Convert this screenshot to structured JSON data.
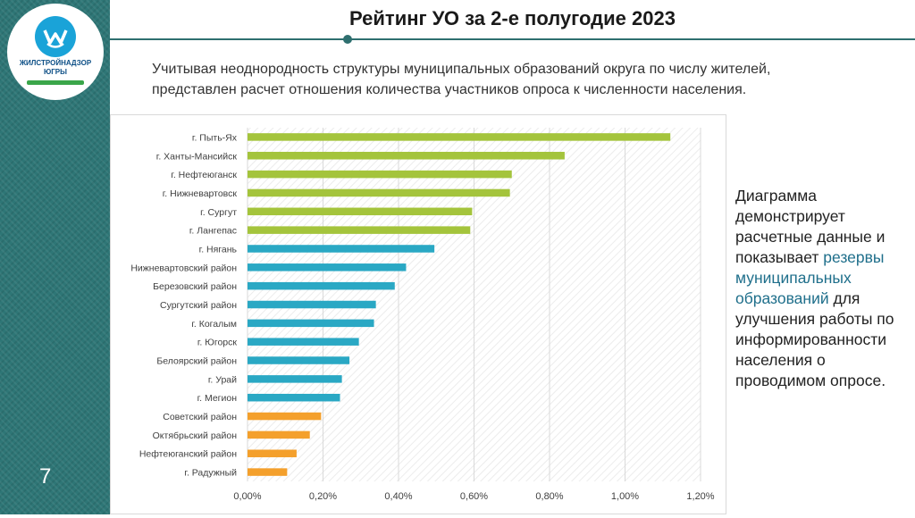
{
  "header": {
    "title": "Рейтинг УО за 2-е полугодие 2023",
    "subtitle_line1": "Учитывая неоднородность структуры муниципальных образований округа по числу жителей,",
    "subtitle_line2": "представлен расчет отношения количества участников опроса к численности населения."
  },
  "logo": {
    "line1": "ЖИЛСТРОЙНАДЗОР",
    "line2": "ЮГРЫ"
  },
  "page_number": "7",
  "side_note": {
    "part1": "Диаграмма демонстрирует расчетные данные и показывает ",
    "highlight": "резервы муниципальных образований",
    "part2": " для улучшения работы по информированности населения о проводимом опросе."
  },
  "colors": {
    "green": "#a4c43c",
    "blue": "#2aa8c4",
    "orange": "#f4a02c",
    "accent": "#2e6f6f"
  },
  "chart_data": {
    "type": "bar",
    "orientation": "horizontal",
    "categories": [
      "г. Пыть-Ях",
      "г. Ханты-Мансийск",
      "г. Нефтеюганск",
      "г. Нижневартовск",
      "г. Сургут",
      "г. Лангепас",
      "г. Нягань",
      "Нижневартовский район",
      "Березовский район",
      "Сургутский район",
      "г. Когалым",
      "г. Югорск",
      "Белоярский район",
      "г. Урай",
      "г. Мегион",
      "Советский район",
      "Октябрьский район",
      "Нефтеюганский район",
      "г. Радужный"
    ],
    "values": [
      1.12,
      0.84,
      0.7,
      0.695,
      0.595,
      0.59,
      0.495,
      0.42,
      0.39,
      0.34,
      0.335,
      0.295,
      0.27,
      0.25,
      0.245,
      0.195,
      0.165,
      0.13,
      0.105
    ],
    "groups": [
      "green",
      "green",
      "green",
      "green",
      "green",
      "green",
      "blue",
      "blue",
      "blue",
      "blue",
      "blue",
      "blue",
      "blue",
      "blue",
      "blue",
      "orange",
      "orange",
      "orange",
      "orange"
    ],
    "xlim": [
      0,
      1.2
    ],
    "xticks": [
      "0,00%",
      "0,20%",
      "0,40%",
      "0,60%",
      "0,80%",
      "1,00%",
      "1,20%"
    ],
    "grid": true,
    "legend": "none"
  }
}
